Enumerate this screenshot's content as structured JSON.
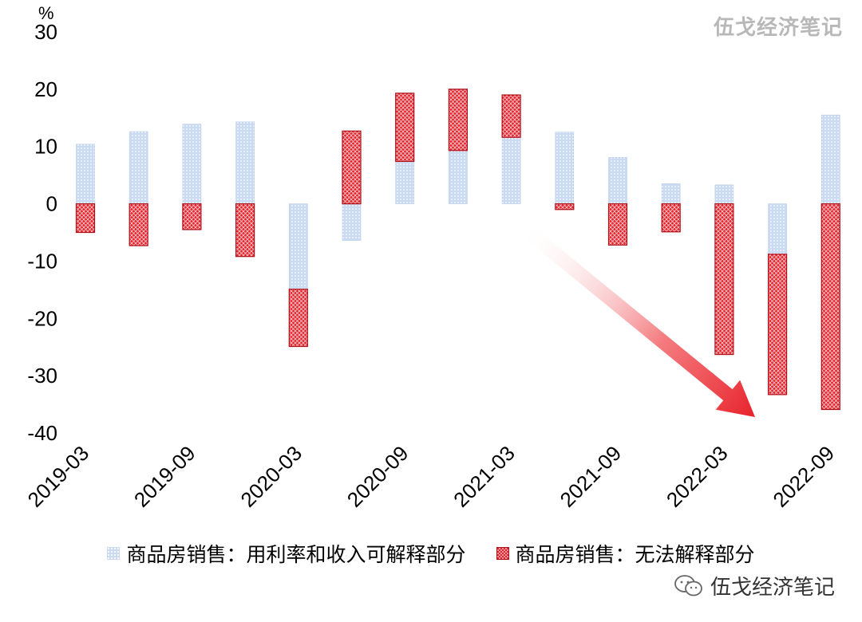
{
  "watermark": {
    "text": "伍戈经济笔记"
  },
  "colors": {
    "explained": "#c9daf2",
    "unexplained": "#e8222b",
    "arrow": "#e8222b"
  },
  "chart_data": {
    "type": "bar",
    "stacked": true,
    "unit_label": "%",
    "ylim": [
      -40,
      30
    ],
    "yticks": [
      30,
      20,
      10,
      0,
      -10,
      -20,
      -30,
      -40
    ],
    "categories": [
      "2019-03",
      "2019-06",
      "2019-09",
      "2019-12",
      "2020-03",
      "2020-06",
      "2020-09",
      "2020-12",
      "2021-03",
      "2021-06",
      "2021-09",
      "2021-12",
      "2022-03",
      "2022-06",
      "2022-09"
    ],
    "xtick_labels": [
      "2019-03",
      "2019-09",
      "2020-03",
      "2020-09",
      "2021-03",
      "2021-09",
      "2022-03",
      "2022-09"
    ],
    "series": [
      {
        "name": "商品房销售：用利率和收入可解释部分",
        "values": [
          10.4,
          12.6,
          13.9,
          14.3,
          -14.9,
          -6.4,
          7.4,
          9.3,
          11.6,
          12.5,
          8.1,
          3.5,
          3.3,
          -8.8,
          15.5
        ]
      },
      {
        "name": "商品房销售：无法解释部分",
        "values": [
          -5.0,
          -7.3,
          -4.5,
          -9.2,
          -10.0,
          12.7,
          11.9,
          10.7,
          7.4,
          -1.0,
          -7.2,
          -4.9,
          -26.3,
          -24.5,
          -35.9
        ]
      }
    ],
    "grid": false,
    "legend_position": "bottom",
    "annotations": [
      {
        "type": "arrow",
        "direction": "down-right"
      }
    ]
  }
}
